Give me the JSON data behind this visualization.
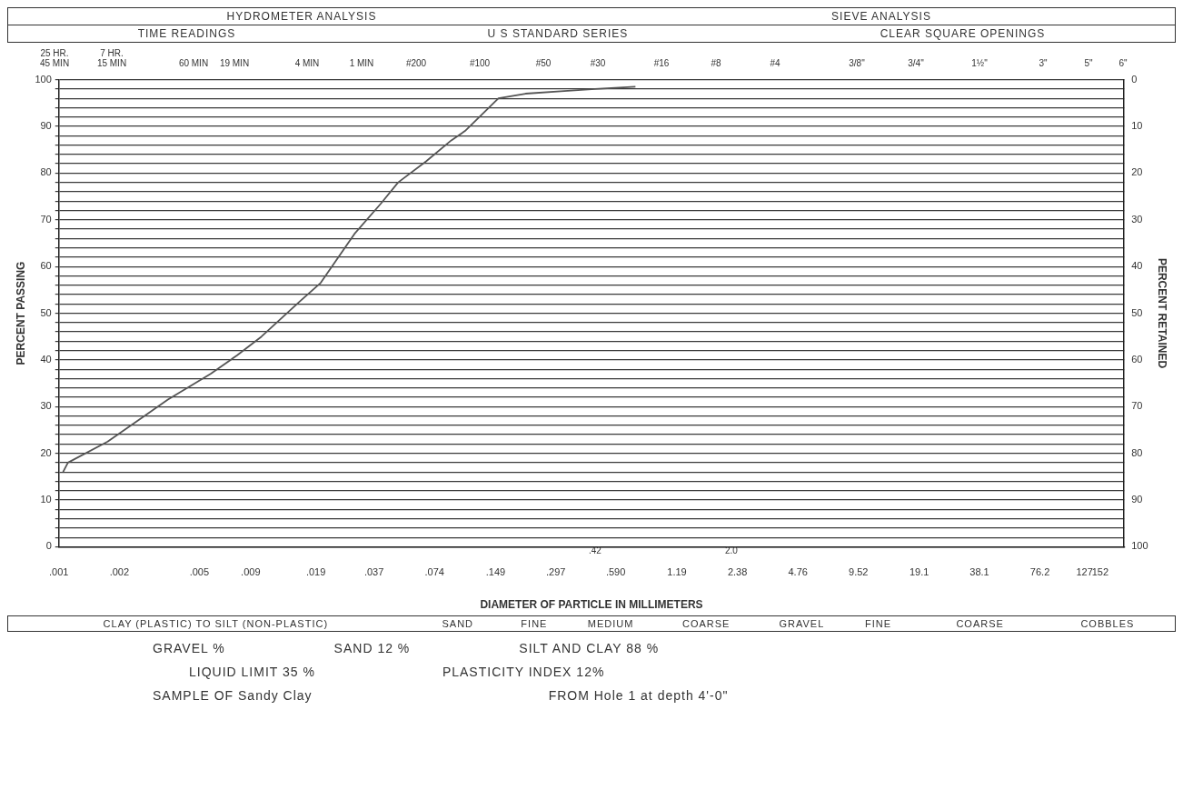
{
  "chart_data": {
    "type": "line",
    "xlabel": "DIAMETER OF PARTICLE IN MILLIMETERS",
    "ylabel": "PERCENT PASSING",
    "y2label": "PERCENT RETAINED",
    "log": "x",
    "grid": "y",
    "xlim": [
      0.001,
      200
    ],
    "xticks": [
      {
        "value": 0.001,
        "label": ".001"
      },
      {
        "value": 0.002,
        "label": ".002"
      },
      {
        "value": 0.005,
        "label": ".005"
      },
      {
        "value": 0.009,
        "label": ".009"
      },
      {
        "value": 0.019,
        "label": ".019"
      },
      {
        "value": 0.037,
        "label": ".037"
      },
      {
        "value": 0.074,
        "label": ".074"
      },
      {
        "value": 0.149,
        "label": ".149"
      },
      {
        "value": 0.297,
        "label": ".297"
      },
      {
        "value": 0.59,
        "label": ".590"
      },
      {
        "value": 1.19,
        "label": "1.19"
      },
      {
        "value": 2.38,
        "label": "2.38"
      },
      {
        "value": 4.76,
        "label": "4.76"
      },
      {
        "value": 9.52,
        "label": "9.52"
      },
      {
        "value": 19.1,
        "label": "19.1"
      },
      {
        "value": 38.1,
        "label": "38.1"
      },
      {
        "value": 76.2,
        "label": "76.2"
      },
      {
        "value": 127,
        "label": "127"
      },
      {
        "value": 152,
        "label": "152"
      }
    ],
    "ylim": [
      0,
      100
    ],
    "yticks": [
      0,
      {
        "value": 2,
        "label": null
      },
      {
        "value": 4,
        "label": null
      },
      {
        "value": 6,
        "label": null
      },
      {
        "value": 8,
        "label": null
      },
      10,
      {
        "value": 12,
        "label": null
      },
      {
        "value": 14,
        "label": null
      },
      {
        "value": 16,
        "label": null
      },
      {
        "value": 18,
        "label": null
      },
      20,
      {
        "value": 22,
        "label": null
      },
      {
        "value": 24,
        "label": null
      },
      {
        "value": 26,
        "label": null
      },
      {
        "value": 28,
        "label": null
      },
      30,
      {
        "value": 32,
        "label": null
      },
      {
        "value": 34,
        "label": null
      },
      {
        "value": 36,
        "label": null
      },
      {
        "value": 38,
        "label": null
      },
      40,
      {
        "value": 42,
        "label": null
      },
      {
        "value": 44,
        "label": null
      },
      {
        "value": 46,
        "label": null
      },
      {
        "value": 48,
        "label": null
      },
      50,
      {
        "value": 52,
        "label": null
      },
      {
        "value": 54,
        "label": null
      },
      {
        "value": 56,
        "label": null
      },
      {
        "value": 58,
        "label": null
      },
      60,
      {
        "value": 62,
        "label": null
      },
      {
        "value": 64,
        "label": null
      },
      {
        "value": 66,
        "label": null
      },
      {
        "value": 68,
        "label": null
      },
      70,
      {
        "value": 72,
        "label": null
      },
      {
        "value": 74,
        "label": null
      },
      {
        "value": 76,
        "label": null
      },
      {
        "value": 78,
        "label": null
      },
      80,
      {
        "value": 82,
        "label": null
      },
      {
        "value": 84,
        "label": null
      },
      {
        "value": 86,
        "label": null
      },
      {
        "value": 88,
        "label": null
      },
      90,
      {
        "value": 92,
        "label": null
      },
      {
        "value": 94,
        "label": null
      },
      {
        "value": 96,
        "label": null
      },
      {
        "value": 98,
        "label": null
      },
      100
    ],
    "y2lim": [
      100,
      0
    ],
    "y2ticks": [
      0,
      10,
      20,
      30,
      40,
      50,
      60,
      70,
      80,
      90,
      100
    ],
    "series": [
      {
        "color": "#555555",
        "x": [
          0.00105,
          0.00111,
          0.00175,
          0.00267,
          0.00349,
          0.00569,
          0.00772,
          0.0102,
          0.0158,
          0.0201,
          0.0296,
          0.0401,
          0.0488,
          0.0672,
          0.0897,
          0.105,
          0.154,
          0.21,
          0.315,
          0.466,
          0.74
        ],
        "values": [
          16,
          18,
          22.5,
          28,
          31.5,
          37,
          41,
          45,
          52.5,
          56.5,
          67,
          73.5,
          78,
          82.5,
          87,
          89,
          96,
          97,
          97.5,
          98,
          98.5
        ]
      }
    ],
    "annotations": [
      "HYDROMETER ANALYSIS",
      "TIME READINGS",
      "SIEVE ANALYSIS",
      "U S STANDARD SERIES",
      "CLEAR SQUARE OPENINGS",
      "25 HR.\n45 MIN",
      "7 HR.\n15 MIN",
      "60 MIN",
      "19 MIN",
      "4 MIN",
      "1 MIN",
      "#200",
      "#100",
      "#50",
      "#30",
      "#16",
      "#8",
      "#4",
      "3/8\"",
      "3/4\"",
      "1½\"",
      "3\"",
      "5\"",
      "6\"",
      "CLAY (PLASTIC) TO SILT (NON-PLASTIC)",
      "SAND",
      "FINE",
      "MEDIUM",
      "COARSE",
      "GRAVEL",
      "FINE",
      "COARSE",
      "COBBLES",
      "GRAVEL %",
      "SAND 12 %",
      "SILT AND CLAY 88 %",
      "LIQUID LIMIT 35 %",
      "PLASTICITY INDEX 12%",
      "SAMPLE OF Sandy Clay",
      "FROM Hole 1 at depth 4'-0\"",
      ".42",
      "2.0"
    ]
  }
}
